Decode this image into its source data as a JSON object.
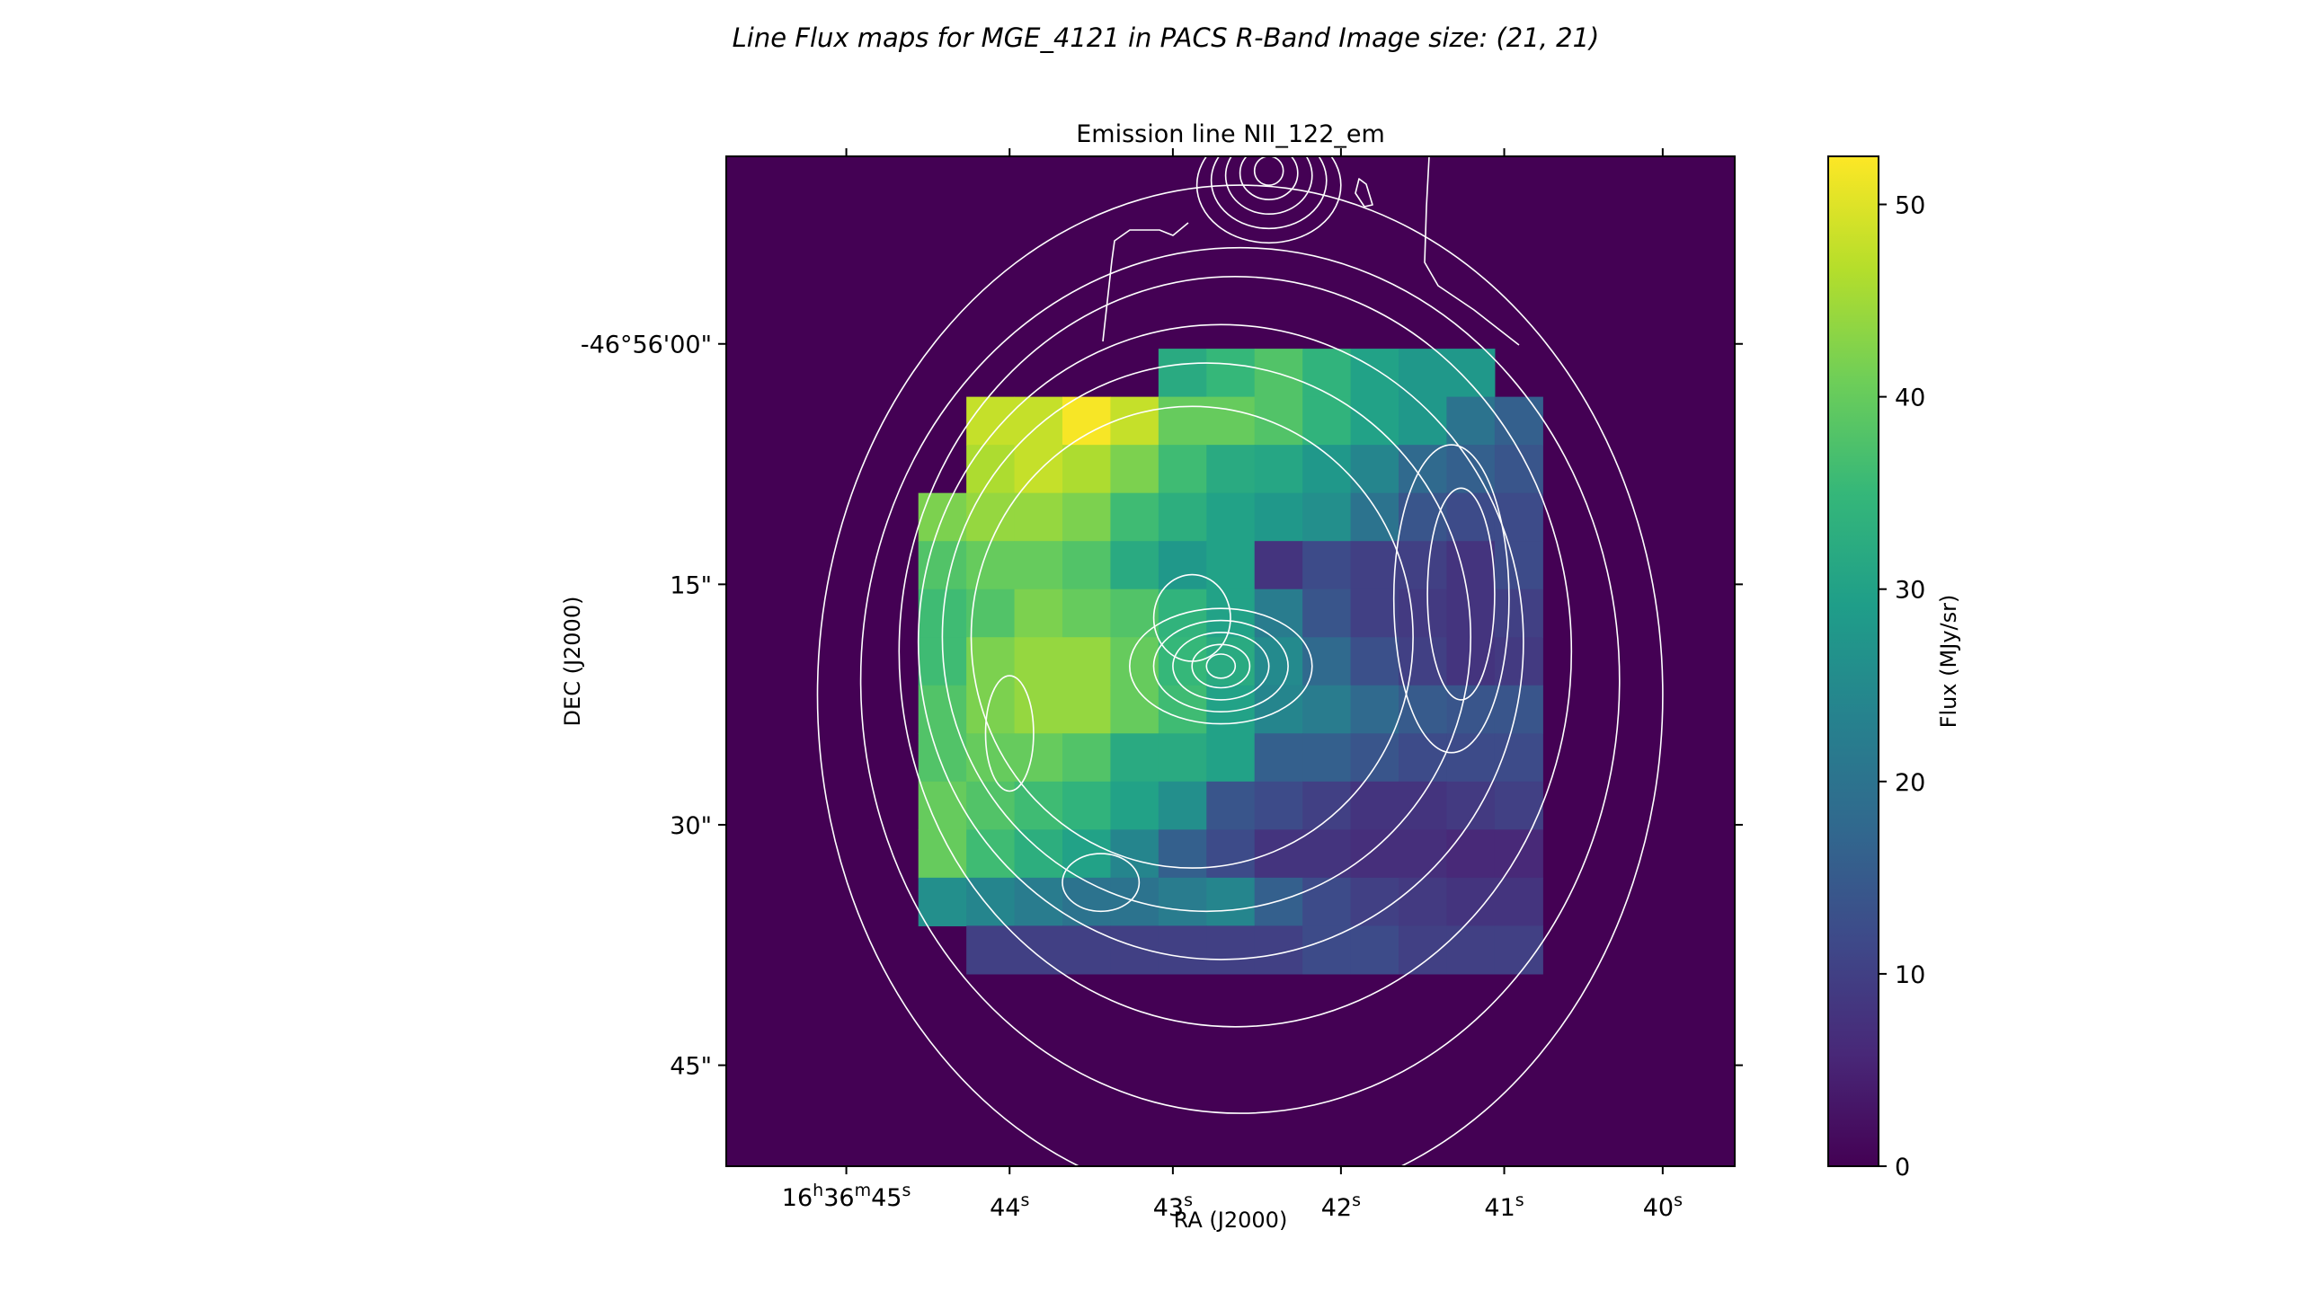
{
  "figure": {
    "suptitle": "Line Flux maps for MGE_4121 in PACS R-Band  Image size: (21, 21)"
  },
  "chart_data": {
    "type": "heatmap",
    "title": "Emission line NII_122_em",
    "xlabel": "RA (J2000)",
    "ylabel": "DEC (J2000)",
    "x_ticks": [
      {
        "pre": "16",
        "sup1": "h",
        "mid": "36",
        "sup2": "m",
        "num": "45",
        "sup3": "s",
        "col": 2.5
      },
      {
        "pre": "",
        "sup1": "",
        "mid": "",
        "sup2": "",
        "num": "44",
        "sup3": "s",
        "col": 5.9
      },
      {
        "pre": "",
        "sup1": "",
        "mid": "",
        "sup2": "",
        "num": "43",
        "sup3": "s",
        "col": 9.3
      },
      {
        "pre": "",
        "sup1": "",
        "mid": "",
        "sup2": "",
        "num": "42",
        "sup3": "s",
        "col": 12.8
      },
      {
        "pre": "",
        "sup1": "",
        "mid": "",
        "sup2": "",
        "num": "41",
        "sup3": "s",
        "col": 16.2
      },
      {
        "pre": "",
        "sup1": "",
        "mid": "",
        "sup2": "",
        "num": "40",
        "sup3": "s",
        "col": 19.5
      }
    ],
    "y_ticks": [
      {
        "label": "-46°56'00\"",
        "row": 3.9
      },
      {
        "label": "15\"",
        "row": 8.9
      },
      {
        "label": "30\"",
        "row": 13.9
      },
      {
        "label": "45\"",
        "row": 18.9
      }
    ],
    "grid_shape": [
      21,
      21
    ],
    "values": [
      [
        0,
        0,
        0,
        0,
        0,
        0,
        0,
        0,
        0,
        0,
        0,
        0,
        0,
        0,
        0,
        0,
        0,
        0,
        0,
        0,
        0
      ],
      [
        0,
        0,
        0,
        0,
        0,
        0,
        0,
        0,
        0,
        0,
        0,
        0,
        0,
        0,
        0,
        0,
        0,
        0,
        0,
        0,
        0
      ],
      [
        0,
        0,
        0,
        0,
        0,
        0,
        0,
        0,
        0,
        0,
        0,
        0,
        0,
        0,
        0,
        0,
        0,
        0,
        0,
        0,
        0
      ],
      [
        0,
        0,
        0,
        0,
        0,
        0,
        0,
        0,
        0,
        0,
        0,
        0,
        0,
        0,
        0,
        0,
        0,
        0,
        0,
        0,
        0
      ],
      [
        0,
        0,
        0,
        0,
        0,
        0,
        0,
        0,
        0,
        32,
        35,
        38,
        34,
        30,
        28,
        28,
        0,
        0,
        0,
        0,
        0
      ],
      [
        0,
        0,
        0,
        0,
        0,
        48,
        48,
        52,
        48,
        40,
        40,
        38,
        34,
        30,
        28,
        20,
        16,
        0,
        0,
        0,
        0
      ],
      [
        0,
        0,
        0,
        0,
        0,
        46,
        48,
        46,
        42,
        36,
        32,
        31,
        28,
        24,
        18,
        16,
        14,
        0,
        0,
        0,
        0
      ],
      [
        0,
        0,
        0,
        0,
        42,
        44,
        44,
        42,
        36,
        33,
        30,
        28,
        26,
        20,
        14,
        12,
        12,
        0,
        0,
        0,
        0
      ],
      [
        0,
        0,
        0,
        0,
        38,
        40,
        40,
        38,
        32,
        28,
        30,
        8,
        12,
        10,
        10,
        8,
        12,
        0,
        0,
        0,
        0
      ],
      [
        0,
        0,
        0,
        0,
        36,
        38,
        42,
        40,
        38,
        34,
        30,
        22,
        14,
        10,
        9,
        8,
        10,
        0,
        0,
        0,
        0
      ],
      [
        0,
        0,
        0,
        0,
        36,
        42,
        44,
        44,
        40,
        35,
        32,
        25,
        18,
        13,
        10,
        8,
        9,
        0,
        0,
        0,
        0
      ],
      [
        0,
        0,
        0,
        0,
        38,
        42,
        44,
        44,
        40,
        36,
        30,
        24,
        22,
        18,
        15,
        14,
        14,
        0,
        0,
        0,
        0
      ],
      [
        0,
        0,
        0,
        0,
        38,
        40,
        40,
        38,
        32,
        32,
        30,
        16,
        16,
        14,
        12,
        12,
        12,
        0,
        0,
        0,
        0
      ],
      [
        0,
        0,
        0,
        0,
        40,
        38,
        36,
        34,
        30,
        26,
        14,
        12,
        10,
        8,
        8,
        9,
        10,
        0,
        0,
        0,
        0
      ],
      [
        0,
        0,
        0,
        0,
        40,
        36,
        33,
        30,
        24,
        16,
        12,
        8,
        8,
        7,
        7,
        6,
        6,
        0,
        0,
        0,
        0
      ],
      [
        0,
        0,
        0,
        0,
        26,
        24,
        22,
        20,
        20,
        22,
        24,
        16,
        12,
        10,
        9,
        8,
        8,
        0,
        0,
        0,
        0
      ],
      [
        0,
        0,
        0,
        0,
        0,
        10,
        10,
        10,
        10,
        10,
        10,
        10,
        12,
        12,
        10,
        10,
        10,
        0,
        0,
        0,
        0
      ],
      [
        0,
        0,
        0,
        0,
        0,
        0,
        0,
        0,
        0,
        0,
        0,
        0,
        0,
        0,
        0,
        0,
        0,
        0,
        0,
        0,
        0
      ],
      [
        0,
        0,
        0,
        0,
        0,
        0,
        0,
        0,
        0,
        0,
        0,
        0,
        0,
        0,
        0,
        0,
        0,
        0,
        0,
        0,
        0
      ],
      [
        0,
        0,
        0,
        0,
        0,
        0,
        0,
        0,
        0,
        0,
        0,
        0,
        0,
        0,
        0,
        0,
        0,
        0,
        0,
        0,
        0
      ],
      [
        0,
        0,
        0,
        0,
        0,
        0,
        0,
        0,
        0,
        0,
        0,
        0,
        0,
        0,
        0,
        0,
        0,
        0,
        0,
        0,
        0
      ]
    ],
    "colorbar": {
      "label": "Flux (MJy/sr)",
      "min": 0,
      "max": 52.5,
      "ticks": [
        "0",
        "10",
        "20",
        "30",
        "40",
        "50"
      ],
      "colormap": "viridis"
    },
    "contour_color": "#ffffff",
    "contours": [
      {
        "cx": 10.7,
        "cy": 11.2,
        "rx": 8.8,
        "ry": 10.6
      },
      {
        "cx": 10.7,
        "cy": 10.9,
        "rx": 7.9,
        "ry": 9.0
      },
      {
        "cx": 10.6,
        "cy": 10.3,
        "rx": 7.0,
        "ry": 7.8
      },
      {
        "cx": 10.3,
        "cy": 10.1,
        "rx": 6.3,
        "ry": 6.6
      },
      {
        "cx": 10.0,
        "cy": 10.0,
        "rx": 5.5,
        "ry": 5.7
      },
      {
        "cx": 9.7,
        "cy": 10.0,
        "rx": 4.6,
        "ry": 4.8
      },
      {
        "cx": 5.9,
        "cy": 12.0,
        "rx": 0.5,
        "ry": 1.2
      },
      {
        "cx": 7.8,
        "cy": 15.1,
        "rx": 0.8,
        "ry": 0.6
      },
      {
        "cx": 9.7,
        "cy": 9.6,
        "rx": 0.8,
        "ry": 0.9
      },
      {
        "cx": 15.3,
        "cy": 9.1,
        "rx": 0.7,
        "ry": 2.2
      },
      {
        "cx": 15.1,
        "cy": 9.2,
        "rx": 1.2,
        "ry": 3.2
      },
      {
        "cx": 10.3,
        "cy": 10.6,
        "rx": 1.9,
        "ry": 1.2
      },
      {
        "cx": 10.3,
        "cy": 10.6,
        "rx": 1.4,
        "ry": 0.95
      },
      {
        "cx": 10.3,
        "cy": 10.6,
        "rx": 1.0,
        "ry": 0.7
      },
      {
        "cx": 10.3,
        "cy": 10.6,
        "rx": 0.6,
        "ry": 0.45
      },
      {
        "cx": 10.3,
        "cy": 10.6,
        "rx": 0.3,
        "ry": 0.25
      },
      {
        "cx": 11.3,
        "cy": 0.6,
        "rx": 1.5,
        "ry": 1.2
      },
      {
        "cx": 11.3,
        "cy": 0.5,
        "rx": 1.2,
        "ry": 1.0
      },
      {
        "cx": 11.3,
        "cy": 0.4,
        "rx": 0.9,
        "ry": 0.8
      },
      {
        "cx": 11.3,
        "cy": 0.35,
        "rx": 0.6,
        "ry": 0.55
      },
      {
        "cx": 11.3,
        "cy": 0.3,
        "rx": 0.3,
        "ry": 0.3
      }
    ]
  }
}
